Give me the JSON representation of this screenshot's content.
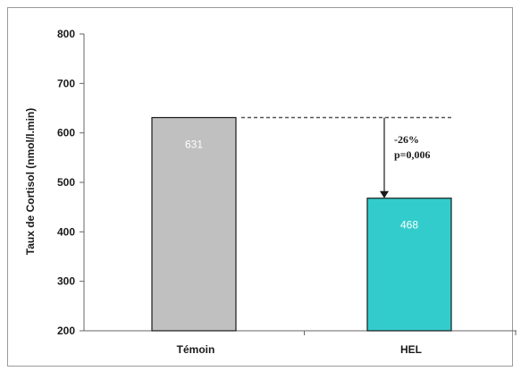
{
  "chart_data": {
    "type": "bar",
    "categories": [
      "Témoin",
      "HEL"
    ],
    "values": [
      631,
      468
    ],
    "data_labels": [
      "631",
      "468"
    ],
    "bar_colors": [
      "#c0c0c0",
      "#33cccc"
    ],
    "ylabel": "Taux de Cortisol (nmol/l.min)",
    "xlabel": "",
    "ylim": [
      200,
      800
    ],
    "yticks": [
      200,
      300,
      400,
      500,
      600,
      700,
      800
    ],
    "grid": false,
    "annotation": {
      "lines": [
        "-26%",
        "p=0,006"
      ]
    }
  }
}
